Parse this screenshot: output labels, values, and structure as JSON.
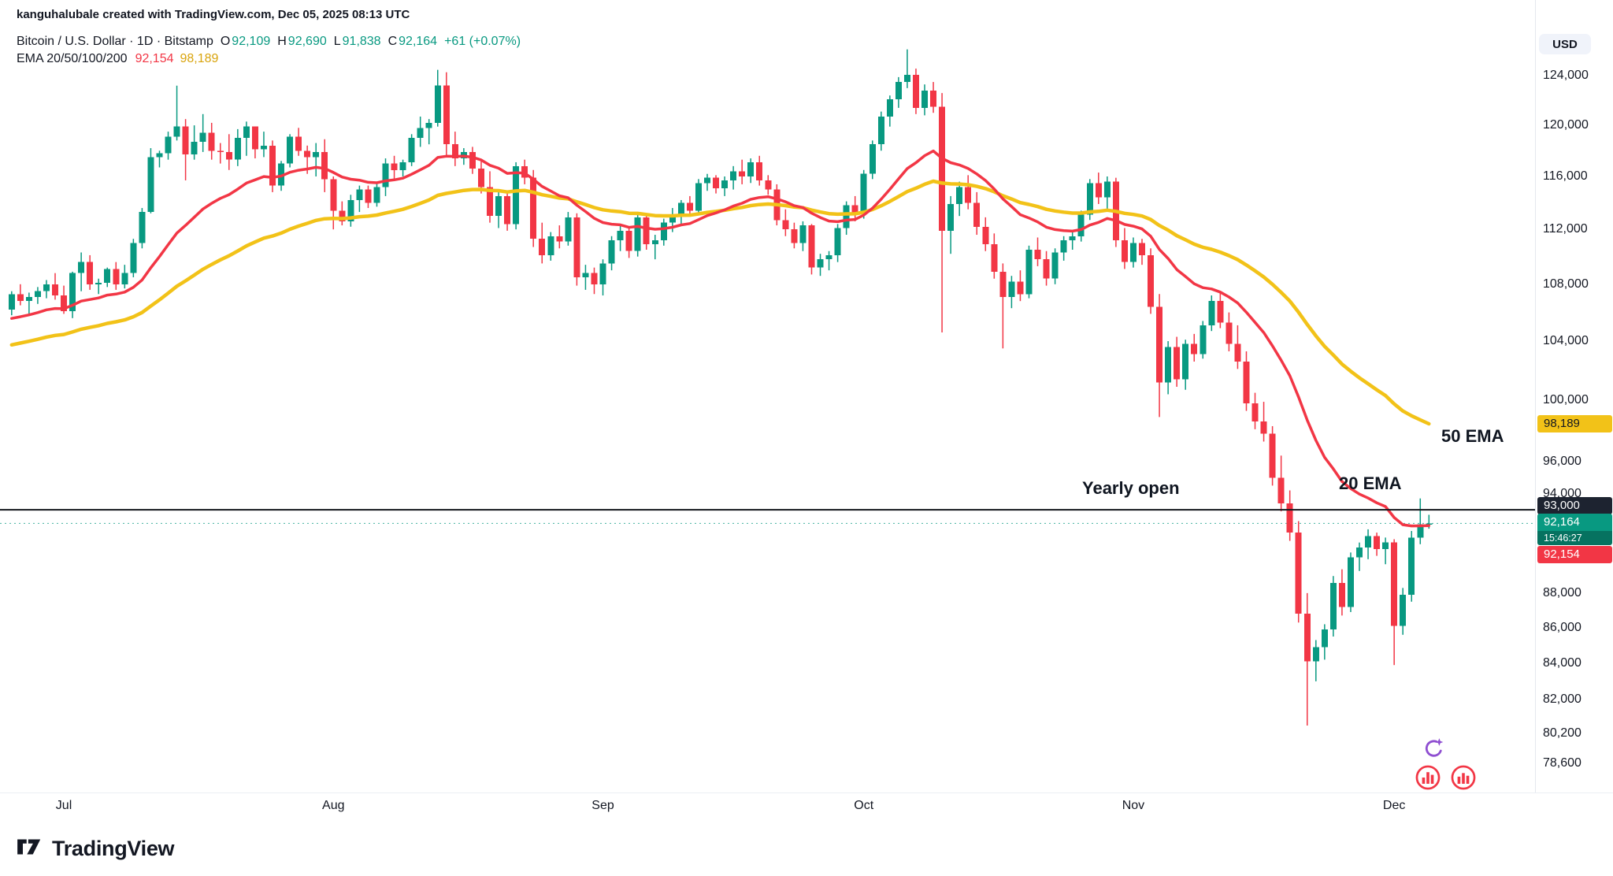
{
  "attribution": "kanguhalubale created with TradingView.com, Dec 05, 2025 08:13 UTC",
  "header": {
    "symbol_line": "Bitcoin / U.S. Dollar · 1D · Bitstamp",
    "ohlc": [
      {
        "label": "O",
        "value": "92,109"
      },
      {
        "label": "H",
        "value": "92,690"
      },
      {
        "label": "L",
        "value": "91,838"
      },
      {
        "label": "C",
        "value": "92,164"
      }
    ],
    "change": "+61 (+0.07%)",
    "indicator_label": "EMA 20/50/100/200",
    "ema20_value": "92,154",
    "ema50_value": "98,189"
  },
  "price_scale": {
    "currency": "USD",
    "ema50_badge": "98,189",
    "yearly_open_badge": "93,000",
    "last_price_badge": "92,164",
    "countdown": "15:46:27",
    "ema20_badge": "92,154"
  },
  "annotations": {
    "yearly_open": "Yearly open",
    "ema20": "20 EMA",
    "ema50": "50 EMA"
  },
  "footer": {
    "brand": "TradingView"
  },
  "colors": {
    "up": "#089981",
    "down": "#F23645",
    "ema20_line": "#F23645",
    "ema50_line": "#F2C218",
    "yearly_open_line": "#15181E",
    "last_price_line": "#089981",
    "badge_dark": "#1D2330",
    "axis_text": "#131722"
  },
  "chart_data": {
    "type": "candlestick",
    "title": "Bitcoin / U.S. Dollar",
    "symbol": "BTCUSD",
    "exchange": "Bitstamp",
    "timeframe": "1D",
    "grid": false,
    "start_date": "2025-06-25",
    "yearly_open": 93000,
    "last_price": 92164,
    "x_axis": {
      "first_x": 14.8,
      "step": 11.04
    },
    "x_months": [
      {
        "label": "Jul",
        "day_index": 6
      },
      {
        "label": "Aug",
        "day_index": 37
      },
      {
        "label": "Sep",
        "day_index": 68
      },
      {
        "label": "Oct",
        "day_index": 98
      },
      {
        "label": "Nov",
        "day_index": 129
      },
      {
        "label": "Dec",
        "day_index": 159
      }
    ],
    "y_axis": {
      "scale": "log",
      "top_price": 130400,
      "bottom_price": 77100,
      "ticks": [
        124000,
        120000,
        116000,
        112000,
        108000,
        104000,
        100000,
        96000,
        94000,
        88000,
        86000,
        84000,
        82000,
        80200,
        78600
      ]
    },
    "ema": {
      "period_20": 20,
      "seed_20": 105400,
      "last_20": 92154,
      "period_50": 50,
      "seed_50": 103600,
      "last_50": 98189
    },
    "candles": [
      [
        106200,
        107500,
        105800,
        107300
      ],
      [
        107300,
        108000,
        106500,
        106800
      ],
      [
        106800,
        107400,
        105900,
        107100
      ],
      [
        107100,
        107800,
        106600,
        107500
      ],
      [
        107500,
        108300,
        107000,
        108000
      ],
      [
        108000,
        108800,
        106900,
        107200
      ],
      [
        107200,
        107900,
        105900,
        106100
      ],
      [
        106100,
        108900,
        105600,
        108800
      ],
      [
        108800,
        110300,
        107500,
        109600
      ],
      [
        109600,
        110100,
        107600,
        108000
      ],
      [
        108000,
        108400,
        107300,
        108100
      ],
      [
        108100,
        109200,
        107800,
        109100
      ],
      [
        109100,
        109600,
        107600,
        108000
      ],
      [
        108000,
        109400,
        107700,
        108800
      ],
      [
        108800,
        111300,
        108500,
        111000
      ],
      [
        111000,
        113600,
        110600,
        113300
      ],
      [
        113300,
        118200,
        113200,
        117500
      ],
      [
        117500,
        118000,
        116700,
        117800
      ],
      [
        117800,
        119500,
        117300,
        119100
      ],
      [
        119100,
        123200,
        118800,
        119900
      ],
      [
        119900,
        120500,
        115700,
        117700
      ],
      [
        117700,
        120000,
        117300,
        118700
      ],
      [
        118700,
        120900,
        117900,
        119400
      ],
      [
        119400,
        120200,
        117300,
        118000
      ],
      [
        118000,
        118600,
        117000,
        117900
      ],
      [
        117900,
        119300,
        116500,
        117300
      ],
      [
        117300,
        119700,
        116800,
        119000
      ],
      [
        119000,
        120300,
        117600,
        119900
      ],
      [
        119900,
        119900,
        117400,
        118100
      ],
      [
        118100,
        119500,
        117500,
        118400
      ],
      [
        118400,
        118800,
        114800,
        115300
      ],
      [
        115300,
        117200,
        114900,
        117000
      ],
      [
        117000,
        119300,
        116700,
        119100
      ],
      [
        119100,
        119800,
        117600,
        118000
      ],
      [
        118000,
        118400,
        116200,
        117500
      ],
      [
        117500,
        118600,
        116000,
        117900
      ],
      [
        117900,
        118900,
        114800,
        115800
      ],
      [
        115800,
        116000,
        112000,
        113400
      ],
      [
        113400,
        114100,
        112300,
        112600
      ],
      [
        112600,
        114600,
        112200,
        114200
      ],
      [
        114200,
        115300,
        113300,
        115000
      ],
      [
        115000,
        115300,
        113600,
        114000
      ],
      [
        114000,
        115600,
        113700,
        115200
      ],
      [
        115200,
        117400,
        114500,
        117000
      ],
      [
        117000,
        117600,
        115800,
        116500
      ],
      [
        116500,
        117300,
        116000,
        117100
      ],
      [
        117100,
        119300,
        116800,
        119000
      ],
      [
        119000,
        120700,
        118300,
        119800
      ],
      [
        119800,
        120500,
        118500,
        120200
      ],
      [
        120200,
        124500,
        119900,
        123200
      ],
      [
        123200,
        124300,
        117500,
        118500
      ],
      [
        118500,
        119500,
        116800,
        117400
      ],
      [
        117400,
        118200,
        116900,
        117900
      ],
      [
        117900,
        118300,
        116200,
        116600
      ],
      [
        116600,
        117300,
        114700,
        115200
      ],
      [
        115200,
        116400,
        112500,
        113000
      ],
      [
        113000,
        114900,
        112100,
        114500
      ],
      [
        114500,
        114800,
        111900,
        112400
      ],
      [
        112400,
        117100,
        112000,
        116800
      ],
      [
        116800,
        117300,
        115400,
        115900
      ],
      [
        115900,
        116500,
        110700,
        111300
      ],
      [
        111300,
        112500,
        109500,
        110100
      ],
      [
        110100,
        111800,
        109700,
        111500
      ],
      [
        111500,
        112300,
        110600,
        111100
      ],
      [
        111100,
        113300,
        110800,
        112900
      ],
      [
        112900,
        113200,
        107900,
        108500
      ],
      [
        108500,
        109400,
        107600,
        108800
      ],
      [
        108800,
        109200,
        107300,
        108000
      ],
      [
        108000,
        109800,
        107200,
        109500
      ],
      [
        109500,
        111500,
        109000,
        111200
      ],
      [
        111200,
        112300,
        110400,
        111900
      ],
      [
        111900,
        112200,
        109900,
        110400
      ],
      [
        110400,
        113300,
        110000,
        112900
      ],
      [
        112900,
        113100,
        110500,
        110900
      ],
      [
        110900,
        111600,
        109800,
        111200
      ],
      [
        111200,
        112800,
        110800,
        112500
      ],
      [
        112500,
        113600,
        111800,
        113100
      ],
      [
        113100,
        114200,
        112300,
        114000
      ],
      [
        114000,
        114500,
        113000,
        113400
      ],
      [
        113400,
        115800,
        113200,
        115500
      ],
      [
        115500,
        116200,
        114900,
        115900
      ],
      [
        115900,
        116100,
        114700,
        115100
      ],
      [
        115100,
        116000,
        114500,
        115700
      ],
      [
        115700,
        116800,
        115000,
        116400
      ],
      [
        116400,
        117300,
        115400,
        116000
      ],
      [
        116000,
        117400,
        115500,
        117100
      ],
      [
        117100,
        117600,
        115300,
        115700
      ],
      [
        115700,
        116100,
        114600,
        115000
      ],
      [
        115000,
        115400,
        112300,
        112700
      ],
      [
        112700,
        113500,
        111500,
        112000
      ],
      [
        112000,
        112500,
        110600,
        111000
      ],
      [
        111000,
        112600,
        110400,
        112300
      ],
      [
        112300,
        112400,
        108700,
        109200
      ],
      [
        109200,
        110200,
        108600,
        109800
      ],
      [
        109800,
        110400,
        109000,
        110100
      ],
      [
        110100,
        112400,
        109600,
        112100
      ],
      [
        112100,
        114100,
        111600,
        113800
      ],
      [
        113800,
        114500,
        112600,
        113200
      ],
      [
        113200,
        116500,
        112800,
        116200
      ],
      [
        116200,
        118800,
        115800,
        118500
      ],
      [
        118500,
        121100,
        118000,
        120700
      ],
      [
        120700,
        122400,
        119900,
        122100
      ],
      [
        122100,
        123900,
        121400,
        123500
      ],
      [
        123500,
        126200,
        123000,
        124100
      ],
      [
        124100,
        124600,
        120900,
        121400
      ],
      [
        121400,
        123300,
        120800,
        122800
      ],
      [
        122800,
        123500,
        121000,
        121500
      ],
      [
        121500,
        122600,
        104600,
        111900
      ],
      [
        111900,
        114500,
        110200,
        113900
      ],
      [
        113900,
        115600,
        113000,
        115200
      ],
      [
        115200,
        116100,
        113500,
        114000
      ],
      [
        114000,
        114800,
        111600,
        112200
      ],
      [
        112200,
        112900,
        110400,
        110900
      ],
      [
        110900,
        111700,
        108400,
        108900
      ],
      [
        108900,
        109500,
        103500,
        107100
      ],
      [
        107100,
        108600,
        106300,
        108200
      ],
      [
        108200,
        109000,
        106800,
        107300
      ],
      [
        107300,
        110800,
        107000,
        110500
      ],
      [
        110500,
        111400,
        109300,
        109800
      ],
      [
        109800,
        110400,
        107900,
        108400
      ],
      [
        108400,
        110600,
        108000,
        110300
      ],
      [
        110300,
        111500,
        109700,
        111200
      ],
      [
        111200,
        111800,
        110500,
        111500
      ],
      [
        111500,
        113400,
        111100,
        113100
      ],
      [
        113100,
        115800,
        112700,
        115500
      ],
      [
        115500,
        116300,
        113900,
        114400
      ],
      [
        114400,
        116000,
        113500,
        115600
      ],
      [
        115600,
        115900,
        110700,
        111200
      ],
      [
        111200,
        112100,
        109100,
        109600
      ],
      [
        109600,
        111400,
        109200,
        111000
      ],
      [
        111000,
        111300,
        109400,
        110100
      ],
      [
        110100,
        110600,
        105900,
        106400
      ],
      [
        106400,
        107300,
        98900,
        101200
      ],
      [
        101200,
        104000,
        100400,
        103600
      ],
      [
        103600,
        104300,
        100900,
        101400
      ],
      [
        101400,
        104100,
        100700,
        103800
      ],
      [
        103800,
        104500,
        102600,
        103100
      ],
      [
        103100,
        105400,
        102800,
        105100
      ],
      [
        105100,
        107200,
        104700,
        106800
      ],
      [
        106800,
        107400,
        104900,
        105300
      ],
      [
        105300,
        106000,
        103300,
        103800
      ],
      [
        103800,
        105100,
        102100,
        102600
      ],
      [
        102600,
        103300,
        99300,
        99800
      ],
      [
        99800,
        100500,
        98100,
        98600
      ],
      [
        98600,
        99900,
        97300,
        97800
      ],
      [
        97800,
        98300,
        94500,
        95000
      ],
      [
        95000,
        96400,
        92900,
        93400
      ],
      [
        93400,
        94200,
        91100,
        91600
      ],
      [
        91600,
        92300,
        86300,
        86800
      ],
      [
        86800,
        88000,
        80600,
        84100
      ],
      [
        84100,
        85300,
        83000,
        84900
      ],
      [
        84900,
        86200,
        84200,
        85900
      ],
      [
        85900,
        89000,
        85500,
        88600
      ],
      [
        88600,
        89400,
        86700,
        87200
      ],
      [
        87200,
        90400,
        86900,
        90100
      ],
      [
        90100,
        91000,
        89300,
        90700
      ],
      [
        90700,
        91800,
        90000,
        91400
      ],
      [
        91400,
        91600,
        90200,
        90600
      ],
      [
        90600,
        91300,
        89700,
        91000
      ],
      [
        91000,
        91200,
        83900,
        86100
      ],
      [
        86100,
        88300,
        85600,
        87900
      ],
      [
        87900,
        91700,
        87500,
        91300
      ],
      [
        91300,
        93700,
        90900,
        92100
      ],
      [
        92109,
        92690,
        91838,
        92164
      ]
    ]
  }
}
